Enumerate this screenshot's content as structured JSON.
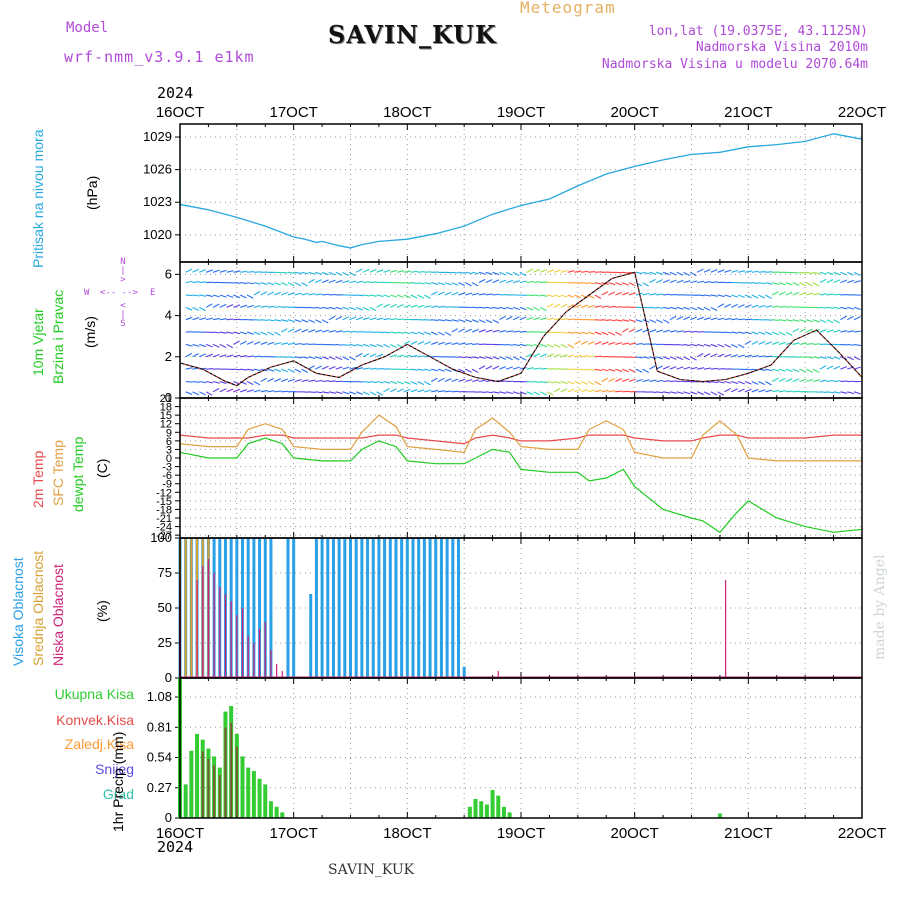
{
  "header": {
    "model_label": "Model",
    "model_version": "wrf-nmm_v3.9.1 e1km",
    "station": "SAVIN_KUK",
    "product": "Meteogram",
    "lonlat": "lon,lat (19.0375E, 43.1125N)",
    "elevation": "Nadmorska Visina 2010m",
    "model_elevation": "Nadmorska Visina u modelu 2070.64m"
  },
  "footer": {
    "station": "SAVIN_KUK",
    "credit": "made by Angel"
  },
  "colors": {
    "pressure": "#29a8e0",
    "t2m": "#e84a4a",
    "tsfc": "#e0a040",
    "dewpt": "#22cc22",
    "high_cloud": "#2aa0e6",
    "mid_cloud": "#d8a030",
    "low_cloud": "#d0207a",
    "total_precip": "#33cc33",
    "convective": "#e84a4a",
    "freezing": "#ff9933",
    "snow": "#5a4adc",
    "hail": "#33c0a8"
  },
  "chart_data": [
    {
      "type": "line",
      "panel": "pressure",
      "ylabel": "Pritisak na nivou mora",
      "unit": "(hPa)",
      "ylim": [
        1017.5,
        1030.2
      ],
      "yticks": [
        1020,
        1023,
        1026,
        1029
      ],
      "x_day": [
        0,
        0.1,
        0.25,
        0.4,
        0.5,
        0.55,
        0.65,
        0.7,
        0.75,
        0.85,
        1.0,
        1.15,
        1.25,
        1.5,
        1.75,
        2.0,
        2.25,
        2.5,
        2.75,
        3.0,
        3.25,
        3.5,
        3.75,
        4.0,
        4.1,
        4.2,
        4.25,
        4.4,
        4.5,
        4.6,
        4.75,
        5.0,
        5.25,
        5.5,
        5.75,
        6.0,
        6.25,
        6.5,
        6.75,
        7.0,
        7.25,
        7.5,
        7.75,
        8.0,
        8.25,
        8.5,
        8.75,
        9.0
      ],
      "values": [
        1023.2,
        1023.8,
        1023.8,
        1023.6,
        1023.3,
        1024.2,
        1025.0,
        1025.2,
        1025.7,
        1025.4,
        1025.2,
        1024.8,
        1024.5,
        1024.0,
        1024.7,
        1024.9,
        1024.3,
        1023.7,
        1023.2,
        1022.8,
        1022.3,
        1021.6,
        1020.8,
        1019.8,
        1019.6,
        1019.3,
        1019.4,
        1019.0,
        1018.8,
        1019.1,
        1019.4,
        1019.6,
        1020.1,
        1020.8,
        1021.9,
        1022.7,
        1023.3,
        1024.5,
        1025.6,
        1026.3,
        1026.9,
        1027.4,
        1027.6,
        1028.1,
        1028.3,
        1028.6,
        1029.3,
        1028.8
      ]
    },
    {
      "type": "line",
      "panel": "wind",
      "ylabel": "10m Vjetar",
      "ylabel2": "Brzina i Pravac",
      "unit": "(m/s)",
      "compass": [
        "N",
        "W",
        "E",
        "S"
      ],
      "ylim": [
        0,
        6.6
      ],
      "yticks": [
        0,
        2,
        4,
        6
      ],
      "x_day": [
        0,
        0.2,
        0.4,
        0.6,
        0.7,
        0.8,
        0.9,
        1.0,
        1.1,
        1.2,
        1.4,
        1.6,
        1.8,
        2.0,
        2.2,
        2.4,
        2.6,
        2.8,
        3.0,
        3.2,
        3.4,
        3.5,
        3.6,
        3.8,
        4.0,
        4.2,
        4.4,
        4.6,
        4.8,
        5.0,
        5.2,
        5.4,
        5.6,
        5.8,
        6.0,
        6.2,
        6.4,
        6.6,
        6.8,
        7.0,
        7.2,
        7.4,
        7.6,
        7.8,
        8.0,
        8.2,
        8.4,
        8.6,
        8.8,
        9.0
      ],
      "values": [
        1.8,
        1.5,
        2.2,
        2.5,
        3.5,
        4.2,
        3.4,
        1.2,
        1.0,
        0.9,
        0.8,
        1.0,
        1.2,
        1.3,
        1.0,
        1.5,
        1.8,
        1.6,
        1.7,
        1.4,
        0.8,
        0.6,
        1.0,
        1.5,
        1.8,
        1.2,
        1.0,
        1.6,
        2.0,
        2.6,
        2.0,
        1.4,
        1.0,
        0.8,
        1.2,
        3.0,
        4.2,
        5.0,
        5.8,
        6.1,
        1.3,
        0.9,
        0.8,
        0.9,
        1.2,
        1.6,
        2.8,
        3.3,
        2.2,
        1.0
      ]
    },
    {
      "type": "line",
      "panel": "temperature",
      "ylabels": [
        "2m Temp",
        "SFC Temp",
        "dewpt Temp"
      ],
      "unit": "(C)",
      "ylim": [
        -28,
        21
      ],
      "yticks": [
        -27,
        -24,
        -21,
        -18,
        -15,
        -12,
        -9,
        -6,
        -3,
        0,
        3,
        6,
        9,
        12,
        15,
        18,
        21
      ],
      "x_day": [
        0,
        0.25,
        0.5,
        0.6,
        0.75,
        0.9,
        1.0,
        1.25,
        1.5,
        1.75,
        2.0,
        2.25,
        2.5,
        2.6,
        2.75,
        2.9,
        3.0,
        3.25,
        3.5,
        3.6,
        3.75,
        3.9,
        4.0,
        4.25,
        4.5,
        4.6,
        4.75,
        4.9,
        5.0,
        5.25,
        5.5,
        5.6,
        5.75,
        5.9,
        6.0,
        6.25,
        6.5,
        6.6,
        6.75,
        6.9,
        7.0,
        7.25,
        7.5,
        7.6,
        7.75,
        7.9,
        8.0,
        8.25,
        8.5,
        8.75,
        9.0
      ],
      "series": [
        {
          "name": "2m Temp",
          "values": [
            6,
            7,
            9,
            10,
            9,
            7,
            6,
            6,
            6,
            7,
            8,
            7,
            7,
            9,
            9,
            8,
            8,
            7,
            7,
            7,
            8,
            8,
            7,
            7,
            7,
            7,
            8,
            8,
            7,
            6,
            5,
            7,
            8,
            7,
            6,
            6,
            7,
            8,
            8,
            8,
            7,
            6,
            6,
            7,
            8,
            8,
            7,
            7,
            7,
            8,
            8
          ]
        },
        {
          "name": "SFC Temp",
          "values": [
            2,
            3,
            11,
            16,
            17,
            10,
            3,
            3,
            3,
            4,
            6,
            6,
            6,
            8,
            9,
            7,
            5,
            4,
            4,
            10,
            12,
            10,
            4,
            3,
            3,
            9,
            15,
            11,
            4,
            3,
            2,
            10,
            14,
            9,
            4,
            3,
            3,
            10,
            13,
            10,
            2,
            0,
            0,
            8,
            13,
            8,
            0,
            -1,
            -1,
            -1,
            -1
          ]
        },
        {
          "name": "dewpt Temp",
          "values": [
            -1,
            -2,
            4,
            6,
            6,
            1,
            0,
            -1,
            0,
            3,
            5,
            5,
            5,
            7,
            7,
            6,
            2,
            0,
            0,
            5,
            7,
            5,
            0,
            -1,
            -1,
            3,
            6,
            4,
            -1,
            -2,
            -2,
            0,
            3,
            2,
            -4,
            -5,
            -5,
            -8,
            -7,
            -4,
            -10,
            -18,
            -21,
            -22,
            -26,
            -19,
            -15,
            -21,
            -24,
            -26,
            -25
          ]
        }
      ]
    },
    {
      "type": "bar",
      "panel": "cloud",
      "ylabels": [
        "Visoka Oblacnost",
        "Srednja Oblacnost",
        "Niska Oblacnost"
      ],
      "unit": "(%)",
      "ylim": [
        0,
        100
      ],
      "yticks": [
        0,
        25,
        50,
        75,
        100
      ],
      "series": [
        {
          "name": "Visoka Oblacnost",
          "x_day": [
            0.75,
            0.8,
            0.85,
            2.75,
            2.8,
            2.85,
            2.9,
            2.95,
            3.0,
            3.05,
            3.1,
            3.15,
            3.2,
            3.25,
            3.3,
            3.35,
            3.4,
            3.45,
            3.5,
            3.55,
            3.6,
            3.65,
            3.7,
            3.75,
            3.8,
            3.95,
            4.0,
            4.15,
            4.2,
            4.25,
            4.3,
            4.35,
            4.4,
            4.45,
            4.5,
            4.55,
            4.6,
            4.65,
            4.7,
            4.75,
            4.8,
            4.85,
            4.9,
            4.95,
            5.0,
            5.05,
            5.1,
            5.15,
            5.2,
            5.25,
            5.3,
            5.35,
            5.4,
            5.45,
            5.5
          ],
          "values": [
            58,
            100,
            100,
            100,
            100,
            100,
            100,
            100,
            100,
            100,
            100,
            100,
            100,
            100,
            100,
            100,
            100,
            100,
            100,
            100,
            100,
            100,
            100,
            100,
            100,
            100,
            100,
            60,
            100,
            100,
            100,
            100,
            100,
            100,
            100,
            100,
            100,
            100,
            100,
            100,
            100,
            100,
            100,
            100,
            100,
            100,
            100,
            100,
            100,
            100,
            100,
            100,
            100,
            100,
            8
          ]
        },
        {
          "name": "Srednja Oblacnost",
          "x_day": [
            0.75,
            0.8,
            0.85,
            0.9,
            0.95,
            1.0,
            1.05,
            1.1,
            1.15,
            1.2,
            1.25,
            1.3,
            1.35,
            1.4,
            1.45,
            1.5,
            1.55,
            1.6,
            1.65,
            1.7,
            1.75,
            1.8,
            1.85,
            1.9,
            1.95,
            2.0,
            2.05,
            2.1,
            2.15,
            2.2,
            2.25,
            2.3,
            2.35,
            2.4,
            2.45,
            2.5,
            2.55,
            2.6,
            2.65,
            2.7,
            2.75,
            2.8,
            2.85,
            2.9,
            2.95,
            3.0,
            3.05,
            3.1,
            3.15,
            3.2,
            3.25
          ],
          "values": [
            40,
            100,
            100,
            100,
            100,
            100,
            100,
            100,
            100,
            100,
            100,
            100,
            100,
            100,
            100,
            100,
            100,
            100,
            100,
            100,
            100,
            100,
            100,
            100,
            100,
            100,
            100,
            100,
            100,
            100,
            100,
            100,
            100,
            100,
            100,
            100,
            100,
            100,
            100,
            100,
            100,
            100,
            100,
            100,
            100,
            100,
            100,
            100,
            100,
            100,
            100
          ]
        },
        {
          "name": "Niska Oblacnost",
          "x_day": [
            0.55,
            0.6,
            1.0,
            1.1,
            1.2,
            1.3,
            1.4,
            1.5,
            1.6,
            1.7,
            1.8,
            1.9,
            2.0,
            2.1,
            2.2,
            2.3,
            2.4,
            2.5,
            2.6,
            2.7,
            3.15,
            3.2,
            3.25,
            3.3,
            3.35,
            3.4,
            3.45,
            3.5,
            3.55,
            3.6,
            3.65,
            3.7,
            3.75,
            3.8,
            3.85,
            3.9,
            5.8,
            7.8
          ],
          "values": [
            4,
            70,
            30,
            55,
            75,
            68,
            60,
            50,
            45,
            20,
            10,
            12,
            8,
            65,
            40,
            50,
            30,
            35,
            20,
            8,
            70,
            80,
            85,
            75,
            65,
            60,
            55,
            45,
            50,
            30,
            25,
            35,
            40,
            20,
            10,
            5,
            5,
            70
          ]
        }
      ]
    },
    {
      "type": "bar",
      "panel": "precip",
      "legend": [
        "Ukupna Kisa",
        "Konvek.Kisa",
        "Zaledj.Kisa",
        "Snijeg",
        "Grad"
      ],
      "ylabel": "1hr Precip",
      "unit": "(mm)",
      "ylim": [
        0,
        1.25
      ],
      "yticks": [
        0,
        0.27,
        0.54,
        0.81,
        1.08
      ],
      "x_day": [
        0.6,
        0.65,
        1.5,
        1.55,
        1.6,
        1.65,
        1.7,
        1.75,
        1.8,
        1.85,
        1.9,
        1.95,
        2.0,
        2.05,
        2.1,
        2.15,
        2.2,
        2.25,
        3.05,
        3.1,
        3.15,
        3.2,
        3.25,
        3.3,
        3.35,
        3.4,
        3.45,
        3.5,
        3.55,
        3.6,
        3.65,
        3.7,
        3.75,
        3.8,
        3.85,
        3.9,
        5.55,
        5.6,
        5.65,
        5.7,
        5.75,
        5.8,
        5.85,
        5.9,
        7.75
      ],
      "values": [
        0.1,
        0.07,
        0.05,
        0.15,
        0.3,
        0.45,
        0.72,
        1.25,
        1.15,
        0.8,
        0.95,
        1.1,
        0.72,
        0.5,
        0.7,
        0.4,
        0.15,
        0.05,
        0.3,
        0.6,
        0.75,
        0.7,
        0.62,
        0.55,
        0.45,
        0.95,
        1.0,
        0.75,
        0.55,
        0.45,
        0.42,
        0.35,
        0.3,
        0.15,
        0.1,
        0.05,
        0.1,
        0.17,
        0.15,
        0.12,
        0.25,
        0.2,
        0.1,
        0.05,
        0.04
      ]
    }
  ],
  "x_axis": {
    "year": "2024",
    "ticks": [
      "16OCT",
      "17OCT",
      "18OCT",
      "19OCT",
      "20OCT",
      "21OCT",
      "22OCT"
    ],
    "days": [
      0,
      1,
      2,
      3,
      4,
      5,
      6
    ]
  }
}
